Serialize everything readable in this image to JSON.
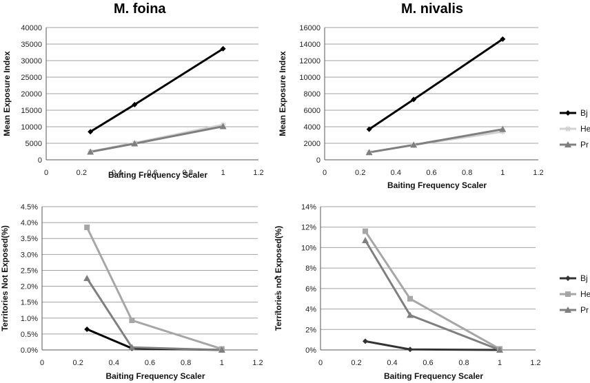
{
  "chart_data": [
    {
      "id": "foina-exposure",
      "type": "line",
      "title": "M. foina",
      "xlabel": "Baiting Frequency Scaler",
      "ylabel": "Mean Exposure Index",
      "xlim": [
        0,
        1.2
      ],
      "ylim": [
        0,
        40000
      ],
      "xticks": [
        0,
        0.2,
        0.4,
        0.6,
        0.8,
        1,
        1.2
      ],
      "xtick_labels": [
        "0",
        "0.2",
        "0.4",
        "0.6",
        "0.8",
        "1",
        "1.2"
      ],
      "yticks": [
        0,
        5000,
        10000,
        15000,
        20000,
        25000,
        30000,
        35000,
        40000
      ],
      "ytick_labels": [
        "0",
        "5000",
        "10000",
        "15000",
        "20000",
        "25000",
        "30000",
        "35000",
        "40000"
      ],
      "grid": true,
      "legend": false,
      "series": [
        {
          "name": "Bj",
          "color": "#000000",
          "marker": "diamond",
          "x": [
            0.25,
            0.5,
            1
          ],
          "y": [
            8500,
            16700,
            33600
          ]
        },
        {
          "name": "He",
          "color": "#d0d0d0",
          "marker": "asterisk",
          "x": [
            0.25,
            0.5,
            1
          ],
          "y": [
            2500,
            5100,
            10600
          ]
        },
        {
          "name": "Pr",
          "color": "#7f7f7f",
          "marker": "triangle",
          "x": [
            0.25,
            0.5,
            1
          ],
          "y": [
            2400,
            4900,
            10100
          ]
        }
      ]
    },
    {
      "id": "nivalis-exposure",
      "type": "line",
      "title": "M. nivalis",
      "xlabel": "Baiting Frequency Scaler",
      "ylabel": "Mean Exposure Index",
      "xlim": [
        0,
        1.2
      ],
      "ylim": [
        0,
        16000
      ],
      "xticks": [
        0,
        0.2,
        0.4,
        0.6,
        0.8,
        1,
        1.2
      ],
      "xtick_labels": [
        "0",
        "0.2",
        "0.4",
        "0.6",
        "0.8",
        "1",
        "1.2"
      ],
      "yticks": [
        0,
        2000,
        4000,
        6000,
        8000,
        10000,
        12000,
        14000,
        16000
      ],
      "ytick_labels": [
        "0",
        "2000",
        "4000",
        "6000",
        "8000",
        "10000",
        "12000",
        "14000",
        "16000"
      ],
      "grid": true,
      "legend": true,
      "legend_position": "right",
      "series": [
        {
          "name": "Bj",
          "color": "#000000",
          "marker": "diamond",
          "x": [
            0.25,
            0.5,
            1
          ],
          "y": [
            3700,
            7300,
            14600
          ]
        },
        {
          "name": "He",
          "color": "#d0d0d0",
          "marker": "asterisk",
          "x": [
            0.25,
            0.5,
            1
          ],
          "y": [
            900,
            1800,
            3400
          ]
        },
        {
          "name": "Pr",
          "color": "#7f7f7f",
          "marker": "triangle",
          "x": [
            0.25,
            0.5,
            1
          ],
          "y": [
            900,
            1800,
            3700
          ]
        }
      ]
    },
    {
      "id": "foina-territories",
      "type": "line",
      "title": "",
      "xlabel": "Baiting Frequency Scaler",
      "ylabel": "Territories Not Exposed(%)",
      "xlim": [
        0,
        1.2
      ],
      "ylim": [
        0,
        4.5
      ],
      "xticks": [
        0,
        0.2,
        0.4,
        0.6,
        0.8,
        1,
        1.2
      ],
      "xtick_labels": [
        "0",
        "0.2",
        "0.4",
        "0.6",
        "0.8",
        "1",
        "1.2"
      ],
      "yticks": [
        0,
        0.5,
        1,
        1.5,
        2,
        2.5,
        3,
        3.5,
        4,
        4.5
      ],
      "ytick_labels": [
        "0.0%",
        "0.5%",
        "1.0%",
        "1.5%",
        "2.0%",
        "2.5%",
        "3.0%",
        "3.5%",
        "4.0%",
        "4.5%"
      ],
      "grid": true,
      "legend": false,
      "series": [
        {
          "name": "Bj",
          "color": "#000000",
          "marker": "diamond",
          "x": [
            0.25,
            0.5,
            1
          ],
          "y": [
            0.65,
            0.05,
            0.0
          ]
        },
        {
          "name": "He",
          "color": "#a6a6a6",
          "marker": "square",
          "x": [
            0.25,
            0.5,
            1
          ],
          "y": [
            3.85,
            0.93,
            0.03
          ]
        },
        {
          "name": "Pr",
          "color": "#7f7f7f",
          "marker": "triangle",
          "x": [
            0.25,
            0.5,
            1
          ],
          "y": [
            2.25,
            0.08,
            0.0
          ]
        }
      ]
    },
    {
      "id": "nivalis-territories",
      "type": "line",
      "title": "",
      "xlabel": "Baiting Frequency Scaler",
      "ylabel": "Territories not Exposed(%)",
      "xlim": [
        0,
        1.2
      ],
      "ylim": [
        0,
        14
      ],
      "xticks": [
        0,
        0.2,
        0.4,
        0.6,
        0.8,
        1,
        1.2
      ],
      "xtick_labels": [
        "0",
        "0.2",
        "0.4",
        "0.6",
        "0.8",
        "1",
        "1.2"
      ],
      "yticks": [
        0,
        2,
        4,
        6,
        8,
        10,
        12,
        14
      ],
      "ytick_labels": [
        "0%",
        "2%",
        "4%",
        "6%",
        "8%",
        "10%",
        "12%",
        "14%"
      ],
      "grid": true,
      "legend": true,
      "legend_position": "right",
      "series": [
        {
          "name": "Bj",
          "color": "#333333",
          "marker": "diamond",
          "x": [
            0.25,
            0.5,
            1
          ],
          "y": [
            0.85,
            0.05,
            0.0
          ]
        },
        {
          "name": "He",
          "color": "#a6a6a6",
          "marker": "square",
          "x": [
            0.25,
            0.5,
            1
          ],
          "y": [
            11.6,
            5.0,
            0.1
          ]
        },
        {
          "name": "Pr",
          "color": "#7f7f7f",
          "marker": "triangle",
          "x": [
            0.25,
            0.5,
            1
          ],
          "y": [
            10.7,
            3.4,
            0.0
          ]
        }
      ]
    }
  ]
}
